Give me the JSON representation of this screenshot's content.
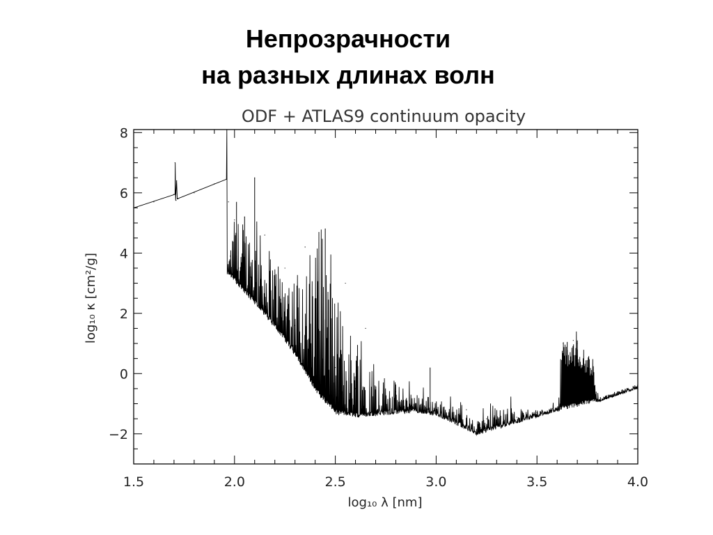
{
  "slide": {
    "title_line1": "Непрозрачности",
    "title_line2": "на разных длинах волн"
  },
  "chart_data": {
    "type": "line",
    "title": "ODF + ATLAS9 continuum opacity",
    "xlabel": "log₁₀ λ  [nm]",
    "ylabel": "log₁₀ κ  [cm²/g]",
    "xlim": [
      1.5,
      4.0
    ],
    "ylim": [
      -3,
      8.1
    ],
    "x_ticks": [
      "1.5",
      "2.0",
      "2.5",
      "3.0",
      "3.5",
      "4.0"
    ],
    "y_ticks": [
      "8",
      "6",
      "4",
      "2",
      "0",
      "−2"
    ],
    "x_tick_values": [
      1.5,
      2.0,
      2.5,
      3.0,
      3.5,
      4.0
    ],
    "y_tick_values": [
      8,
      6,
      4,
      2,
      0,
      -2
    ],
    "grid": false,
    "line_color": "#000000",
    "series": [
      {
        "x": [
          1.5,
          1.6,
          1.7,
          1.705,
          1.71,
          1.713,
          1.716,
          1.72,
          1.8,
          1.9,
          1.96,
          1.962,
          1.965,
          1.97,
          1.975,
          1.98,
          2.0,
          2.02,
          2.05,
          2.08,
          2.1,
          2.12,
          2.15,
          2.2,
          2.25,
          2.3,
          2.35,
          2.4,
          2.45,
          2.5,
          2.55,
          2.6,
          2.65,
          2.7,
          2.8,
          2.9,
          3.0,
          3.1,
          3.15,
          3.2,
          3.25,
          3.3,
          3.4,
          3.5,
          3.6,
          3.63,
          3.65,
          3.68,
          3.7,
          3.75,
          3.8,
          3.85,
          3.9,
          4.0
        ],
        "y": [
          5.5,
          5.7,
          5.95,
          7.0,
          5.75,
          6.4,
          5.8,
          5.8,
          6.0,
          6.3,
          6.45,
          8.1,
          3.4,
          5.7,
          3.5,
          3.9,
          5.1,
          3.5,
          5.2,
          3.2,
          6.5,
          2.5,
          4.6,
          2.2,
          3.5,
          1.6,
          4.2,
          0.8,
          4.8,
          0.2,
          3.0,
          -0.5,
          1.5,
          -1.4,
          -0.6,
          -1.0,
          -1.3,
          -1.7,
          -1.2,
          -2.05,
          -1.5,
          -1.6,
          -1.45,
          -1.3,
          -1.15,
          1.0,
          -0.9,
          1.1,
          1.0,
          0.2,
          -0.9,
          -0.8,
          -0.7,
          -0.5
        ]
      }
    ]
  }
}
